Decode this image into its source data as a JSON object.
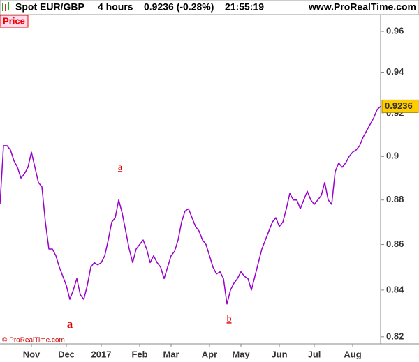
{
  "header": {
    "instrument": "Spot EUR/GBP",
    "timeframe": "4 hours",
    "quote": "0.9236 (-0.28%)",
    "time": "21:55:19",
    "site": "www.ProRealTime.com"
  },
  "chart_data": {
    "type": "line",
    "panel_label": "Price",
    "copyright": "© ProRealTime.com",
    "color": "#9900cc",
    "log_scale": true,
    "values": [
      0.878,
      0.905,
      0.905,
      0.903,
      0.898,
      0.895,
      0.89,
      0.892,
      0.895,
      0.902,
      0.895,
      0.888,
      0.886,
      0.87,
      0.858,
      0.858,
      0.855,
      0.85,
      0.846,
      0.842,
      0.836,
      0.84,
      0.845,
      0.838,
      0.836,
      0.842,
      0.85,
      0.852,
      0.851,
      0.852,
      0.855,
      0.862,
      0.87,
      0.872,
      0.88,
      0.874,
      0.866,
      0.858,
      0.852,
      0.858,
      0.86,
      0.862,
      0.858,
      0.852,
      0.855,
      0.852,
      0.85,
      0.845,
      0.85,
      0.855,
      0.857,
      0.862,
      0.87,
      0.875,
      0.876,
      0.872,
      0.868,
      0.866,
      0.862,
      0.86,
      0.855,
      0.85,
      0.847,
      0.848,
      0.845,
      0.834,
      0.84,
      0.843,
      0.845,
      0.848,
      0.846,
      0.845,
      0.84,
      0.846,
      0.852,
      0.858,
      0.862,
      0.866,
      0.87,
      0.872,
      0.868,
      0.87,
      0.876,
      0.883,
      0.88,
      0.88,
      0.876,
      0.88,
      0.884,
      0.88,
      0.878,
      0.88,
      0.882,
      0.888,
      0.88,
      0.878,
      0.893,
      0.897,
      0.895,
      0.897,
      0.9,
      0.902,
      0.903,
      0.905,
      0.909,
      0.912,
      0.915,
      0.918,
      0.922,
      0.9236
    ],
    "last_value": 0.9236,
    "xlim": [
      0,
      109
    ],
    "xticks": [
      {
        "value": 9,
        "label": "Nov"
      },
      {
        "value": 19,
        "label": "Dec"
      },
      {
        "value": 29,
        "label": "2017"
      },
      {
        "value": 40,
        "label": "Feb"
      },
      {
        "value": 49,
        "label": "Mar"
      },
      {
        "value": 60,
        "label": "Apr"
      },
      {
        "value": 69,
        "label": "May"
      },
      {
        "value": 80,
        "label": "Jun"
      },
      {
        "value": 90,
        "label": "Jul"
      },
      {
        "value": 101,
        "label": "Aug"
      }
    ],
    "ylim": [
      0.817,
      0.968
    ],
    "yticks": [
      0.82,
      0.84,
      0.86,
      0.88,
      0.9,
      0.92,
      0.94,
      0.96
    ],
    "annotations": [
      "a",
      "a",
      "b"
    ]
  }
}
